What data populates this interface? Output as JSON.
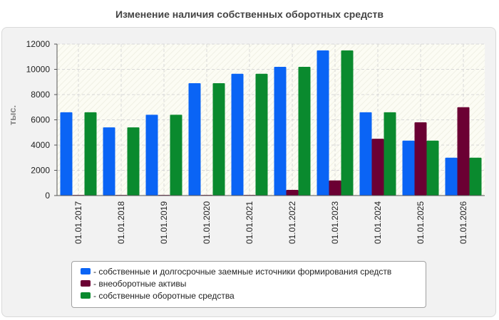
{
  "title": "Изменение наличия собственных оборотных средств",
  "chart_data": {
    "type": "bar",
    "ylabel": "тыс.",
    "xlabel": "",
    "ylim": [
      0,
      12000
    ],
    "yticks": [
      0,
      2000,
      4000,
      6000,
      8000,
      10000,
      12000
    ],
    "grid": true,
    "legend_position": "bottom",
    "categories": [
      "01.01.2017",
      "01.01.2018",
      "01.01.2019",
      "01.01.2020",
      "01.01.2021",
      "01.01.2022",
      "01.01.2023",
      "01.01.2024",
      "01.01.2025",
      "01.01.2026"
    ],
    "series": [
      {
        "name": "- собственные и долгосрочные заемные источники формирования средств",
        "color": "#0a64f5",
        "values": [
          6600,
          5400,
          6400,
          8900,
          9650,
          10200,
          11500,
          6600,
          4350,
          3000
        ]
      },
      {
        "name": "- внеоборотные активы",
        "color": "#6b0033",
        "values": [
          50,
          50,
          50,
          50,
          50,
          450,
          1200,
          4500,
          5800,
          7000
        ]
      },
      {
        "name": "- собственные оборотные средства",
        "color": "#0a8a2e",
        "values": [
          6600,
          5400,
          6400,
          8900,
          9650,
          10200,
          11500,
          6600,
          4350,
          3000
        ]
      }
    ]
  }
}
